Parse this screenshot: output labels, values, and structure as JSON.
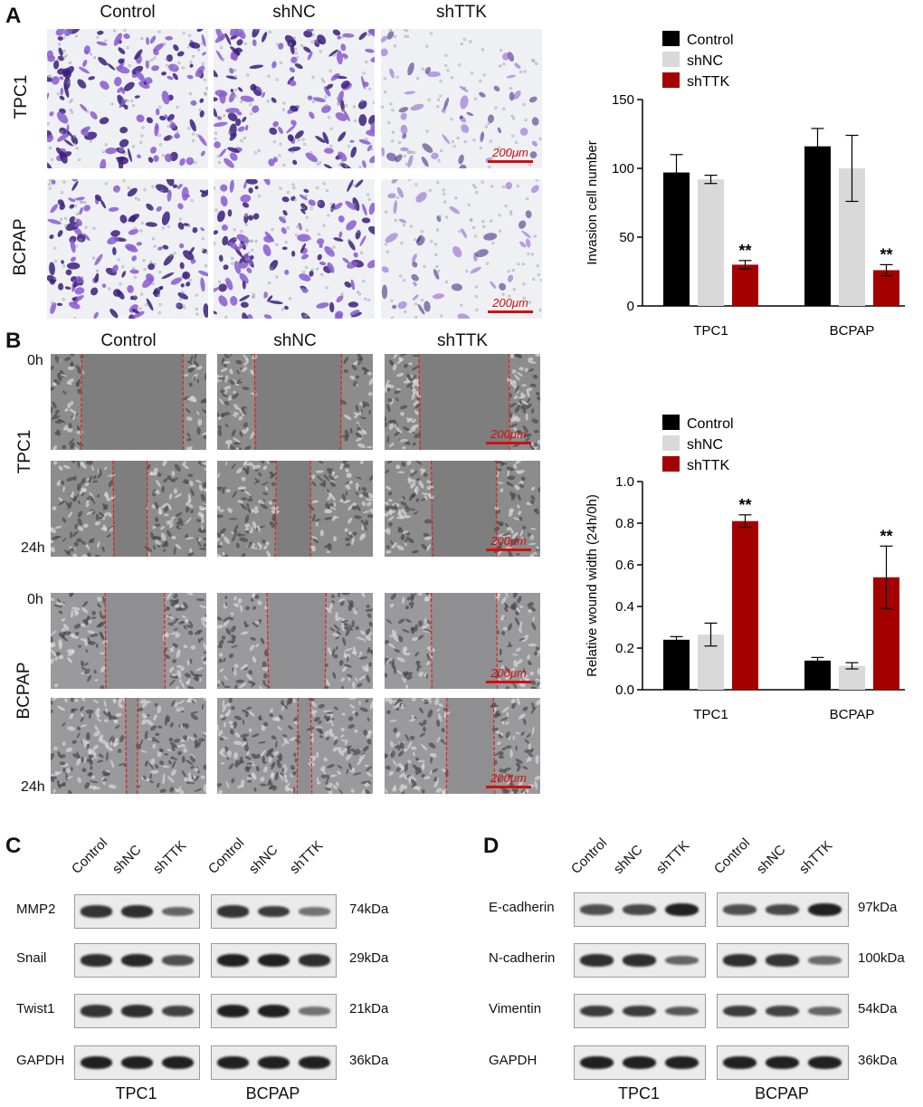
{
  "panels": {
    "a": "A",
    "b": "B",
    "c": "C",
    "d": "D"
  },
  "conditions": [
    "Control",
    "shNC",
    "shTTK"
  ],
  "cell_lines": [
    "TPC1",
    "BCPAP"
  ],
  "timepoints": [
    "0h",
    "24h"
  ],
  "scale_bar_label": "200μm",
  "invasion_image_colors": {
    "stain": "#6a3aa8",
    "background": "#eef0f4"
  },
  "chart_data": [
    {
      "type": "bar",
      "categories": [
        "TPC1",
        "BCPAP"
      ],
      "series": [
        {
          "name": "Control",
          "color": "#000000",
          "values": [
            97,
            116
          ],
          "errors": [
            13,
            13
          ]
        },
        {
          "name": "shNC",
          "color": "#d9d9d9",
          "values": [
            92,
            100
          ],
          "errors": [
            3,
            24
          ]
        },
        {
          "name": "shTTK",
          "color": "#a50000",
          "values": [
            30,
            26
          ],
          "errors": [
            3,
            4
          ]
        }
      ],
      "ylabel": "Invasion cell number",
      "ylim": [
        0,
        150
      ],
      "yticks": [
        0,
        50,
        100,
        150
      ],
      "significance": [
        {
          "category": "TPC1",
          "series": "shTTK",
          "label": "**"
        },
        {
          "category": "BCPAP",
          "series": "shTTK",
          "label": "**"
        }
      ],
      "legend": "top-left"
    },
    {
      "type": "bar",
      "categories": [
        "TPC1",
        "BCPAP"
      ],
      "series": [
        {
          "name": "Control",
          "color": "#000000",
          "values": [
            0.24,
            0.14
          ],
          "errors": [
            0.015,
            0.015
          ]
        },
        {
          "name": "shNC",
          "color": "#d9d9d9",
          "values": [
            0.265,
            0.115
          ],
          "errors": [
            0.055,
            0.015
          ]
        },
        {
          "name": "shTTK",
          "color": "#a50000",
          "values": [
            0.81,
            0.54
          ],
          "errors": [
            0.03,
            0.15
          ]
        }
      ],
      "ylabel": "Relative wound width (24h/0h)",
      "ylim": [
        0,
        1.0
      ],
      "yticks": [
        "0.0",
        "0.2",
        "0.4",
        "0.6",
        "0.8",
        "1.0"
      ],
      "significance": [
        {
          "category": "TPC1",
          "series": "shTTK",
          "label": "**"
        },
        {
          "category": "BCPAP",
          "series": "shTTK",
          "label": "**"
        }
      ],
      "legend": "top-left"
    }
  ],
  "blot_c": {
    "rows": [
      {
        "label": "MMP2",
        "kda": "74kDa"
      },
      {
        "label": "Snail",
        "kda": "29kDa"
      },
      {
        "label": "Twist1",
        "kda": "21kDa"
      },
      {
        "label": "GAPDH",
        "kda": "36kDa"
      }
    ],
    "band_intensity": {
      "TPC1": [
        [
          0.8,
          0.85,
          0.45
        ],
        [
          0.85,
          0.9,
          0.6
        ],
        [
          0.8,
          0.85,
          0.7
        ],
        [
          0.95,
          0.95,
          0.95
        ]
      ],
      "BCPAP": [
        [
          0.8,
          0.75,
          0.35
        ],
        [
          0.95,
          0.95,
          0.85
        ],
        [
          0.95,
          0.95,
          0.35
        ],
        [
          0.95,
          0.95,
          0.95
        ]
      ]
    }
  },
  "blot_d": {
    "rows": [
      {
        "label": "E-cadherin",
        "kda": "97kDa"
      },
      {
        "label": "N-cadherin",
        "kda": "100kDa"
      },
      {
        "label": "Vimentin",
        "kda": "54kDa"
      },
      {
        "label": "GAPDH",
        "kda": "36kDa"
      }
    ],
    "band_intensity": {
      "TPC1": [
        [
          0.6,
          0.65,
          0.95
        ],
        [
          0.85,
          0.85,
          0.45
        ],
        [
          0.75,
          0.75,
          0.55
        ],
        [
          0.95,
          0.95,
          0.95
        ]
      ],
      "BCPAP": [
        [
          0.6,
          0.65,
          0.95
        ],
        [
          0.85,
          0.8,
          0.4
        ],
        [
          0.75,
          0.7,
          0.45
        ],
        [
          0.95,
          0.95,
          0.95
        ]
      ]
    }
  }
}
